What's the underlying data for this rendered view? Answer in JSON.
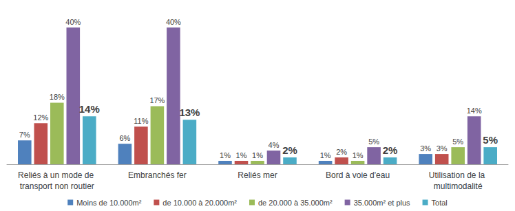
{
  "chart_data": {
    "type": "bar",
    "categories": [
      "Reliés à un mode de transport non routier",
      "Embranchés fer",
      "Reliés mer",
      "Bord à voie d'eau",
      "Utilisation de la multimodalité"
    ],
    "series": [
      {
        "name": "Moins de 10.000m²",
        "color": "#4f81bd",
        "values": [
          7,
          6,
          1,
          1,
          3
        ],
        "value_labels": [
          "7%",
          "6%",
          "1%",
          "1%",
          "3%"
        ]
      },
      {
        "name": "de 10.000 à 20.000m²",
        "color": "#c0504d",
        "values": [
          12,
          11,
          1,
          2,
          3
        ],
        "value_labels": [
          "12%",
          "11%",
          "1%",
          "2%",
          "3%"
        ]
      },
      {
        "name": "de 20.000 à 35.000m²",
        "color": "#9bbb59",
        "values": [
          18,
          17,
          1,
          1,
          5
        ],
        "value_labels": [
          "18%",
          "17%",
          "1%",
          "1%",
          "5%"
        ]
      },
      {
        "name": "35.000m² et plus",
        "color": "#8064a2",
        "values": [
          40,
          40,
          4,
          5,
          14
        ],
        "value_labels": [
          "40%",
          "40%",
          "4%",
          "5%",
          "14%"
        ]
      },
      {
        "name": "Total",
        "color": "#4bacc6",
        "values": [
          14,
          13,
          2,
          2,
          5
        ],
        "value_labels": [
          "14%",
          "13%",
          "2%",
          "2%",
          "5%"
        ]
      }
    ],
    "ylim": [
      0,
      40
    ],
    "grid": false,
    "legend": "bottom",
    "data_labels": true,
    "tick_labels": "x"
  }
}
